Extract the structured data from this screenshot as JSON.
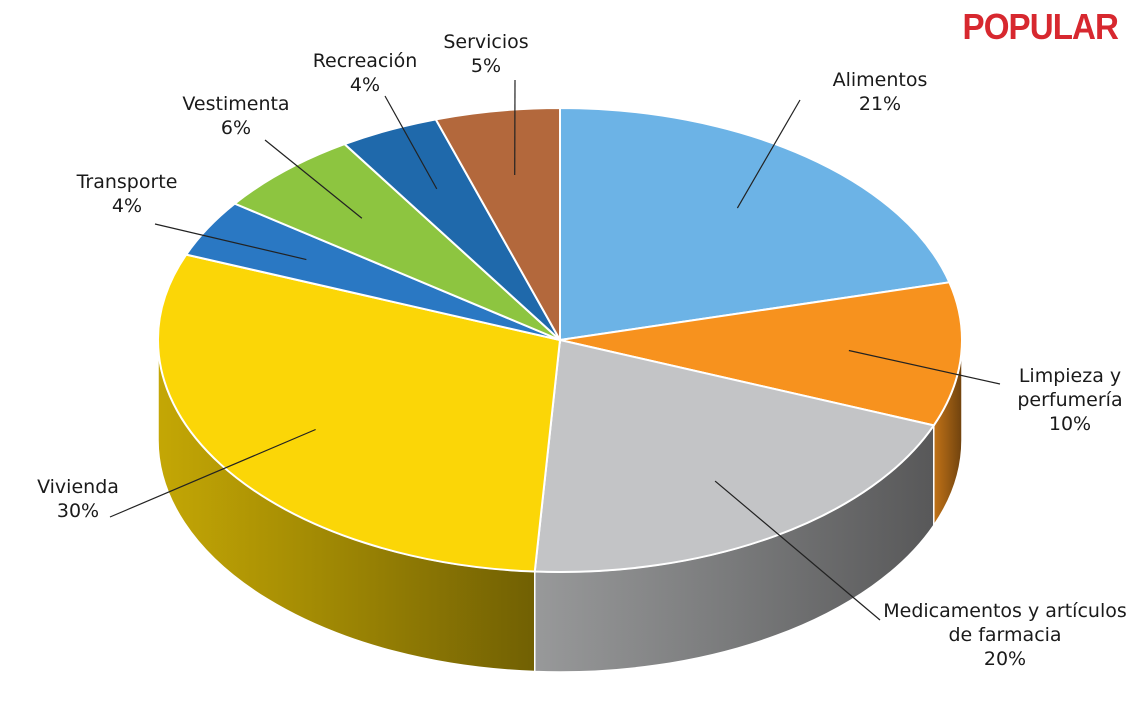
{
  "brand": {
    "text": "POPULAR",
    "color": "#d7282f"
  },
  "chart_data": {
    "type": "pie",
    "style": "3d-exploded-view",
    "unit": "%",
    "slices": [
      {
        "key": "alimentos",
        "label_lines": [
          "Alimentos"
        ],
        "value": 21,
        "value_label": "21%",
        "color": "#6cb3e6"
      },
      {
        "key": "limpieza",
        "label_lines": [
          "Limpieza y",
          "perfumería"
        ],
        "value": 10,
        "value_label": "10%",
        "color": "#f7921e"
      },
      {
        "key": "medicamentos",
        "label_lines": [
          "Medicamentos y artículos",
          "de farmacia"
        ],
        "value": 20,
        "value_label": "20%",
        "color": "#c3c4c6"
      },
      {
        "key": "vivienda",
        "label_lines": [
          "Vivienda"
        ],
        "value": 30,
        "value_label": "30%",
        "color": "#fbd607"
      },
      {
        "key": "transporte",
        "label_lines": [
          "Transporte"
        ],
        "value": 4,
        "value_label": "4%",
        "color": "#2a78c3"
      },
      {
        "key": "vestimenta",
        "label_lines": [
          "Vestimenta"
        ],
        "value": 6,
        "value_label": "6%",
        "color": "#8dc540"
      },
      {
        "key": "recreacion",
        "label_lines": [
          "Recreación"
        ],
        "value": 4,
        "value_label": "4%",
        "color": "#1f69ab"
      },
      {
        "key": "servicios",
        "label_lines": [
          "Servicios"
        ],
        "value": 5,
        "value_label": "5%",
        "color": "#b3683c"
      }
    ],
    "legend": "none"
  }
}
